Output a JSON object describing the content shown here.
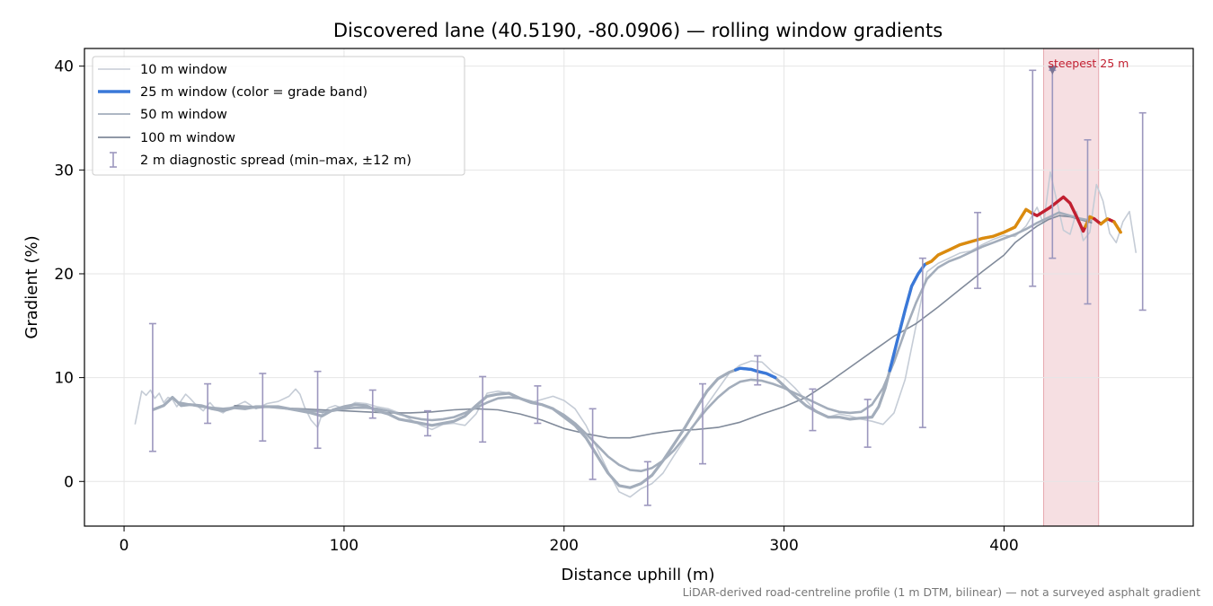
{
  "chart_data": {
    "type": "line",
    "title": "Discovered lane (40.5190, -80.0906) — rolling window gradients",
    "xlabel": "Distance uphill (m)",
    "ylabel": "Gradient (%)",
    "xlim": [
      -18,
      486
    ],
    "ylim": [
      -4.3,
      41.7
    ],
    "x_ticks": [
      0,
      100,
      200,
      300,
      400
    ],
    "y_ticks": [
      0,
      10,
      20,
      30,
      40
    ],
    "grid": true,
    "legend_position": "upper-left",
    "footnote": "LiDAR-derived road-centreline profile (1 m DTM, bilinear) — not a surveyed asphalt gradient",
    "colors": {
      "w10": "#c5ccd6",
      "w50": "#a3adbb",
      "w100": "#808a9a",
      "errorbar": "#9c97be",
      "band_blue": "#3a78d8",
      "band_orange": "#db8b0e",
      "band_red": "#c21f30",
      "highlight_fill": "#f3d4d8",
      "highlight_edge": "#e7a9b0",
      "annotation": "#c21f30",
      "marker": "#7a7595"
    },
    "series": [
      {
        "name": "10 m window",
        "x": [
          5,
          8,
          10,
          12,
          14,
          16,
          18,
          20,
          22,
          24,
          26,
          28,
          30,
          33,
          36,
          39,
          42,
          45,
          48,
          51,
          55,
          60,
          65,
          70,
          75,
          78,
          80,
          82,
          85,
          88,
          90,
          93,
          96,
          100,
          105,
          110,
          115,
          120,
          125,
          130,
          135,
          140,
          145,
          150,
          155,
          160,
          165,
          170,
          175,
          180,
          185,
          190,
          195,
          200,
          205,
          210,
          215,
          220,
          225,
          230,
          235,
          240,
          245,
          250,
          255,
          260,
          265,
          270,
          275,
          280,
          285,
          290,
          295,
          300,
          305,
          310,
          315,
          320,
          325,
          330,
          335,
          340,
          345,
          350,
          355,
          360,
          365,
          370,
          375,
          380,
          385,
          390,
          395,
          400,
          405,
          410,
          415,
          418,
          421,
          424,
          427,
          430,
          433,
          436,
          439,
          442,
          445,
          448,
          451,
          454,
          457,
          460
        ],
        "y": [
          5.5,
          8.7,
          8.3,
          8.8,
          8.0,
          8.5,
          7.6,
          8.1,
          7.9,
          7.2,
          7.8,
          8.4,
          8.0,
          7.3,
          6.8,
          7.6,
          6.9,
          6.6,
          7.1,
          7.3,
          7.7,
          7.0,
          7.5,
          7.7,
          8.2,
          8.9,
          8.4,
          7.2,
          5.9,
          5.2,
          6.5,
          7.1,
          7.3,
          7.0,
          7.6,
          7.5,
          7.2,
          7.0,
          6.6,
          6.0,
          5.4,
          5.0,
          5.5,
          5.6,
          5.4,
          6.5,
          8.5,
          8.7,
          8.5,
          8.0,
          7.6,
          7.9,
          8.2,
          7.8,
          7.0,
          5.4,
          3.2,
          1.0,
          -1.0,
          -1.5,
          -0.7,
          -0.2,
          0.8,
          2.5,
          4.1,
          5.8,
          7.4,
          8.9,
          10.4,
          11.2,
          11.6,
          11.5,
          10.5,
          10.0,
          9.0,
          7.8,
          6.7,
          6.2,
          6.5,
          6.3,
          6.0,
          5.8,
          5.5,
          6.6,
          9.8,
          15.0,
          20.2,
          21.0,
          21.5,
          22.0,
          22.2,
          22.8,
          23.3,
          23.7,
          23.6,
          24.6,
          26.4,
          24.8,
          29.8,
          27.0,
          24.2,
          23.8,
          26.0,
          23.2,
          24.0,
          28.6,
          27.0,
          23.9,
          23.0,
          25.0,
          26.0,
          22.0
        ]
      },
      {
        "name": "25 m window (color = grade band)",
        "x": [
          13,
          18,
          22,
          26,
          30,
          35,
          40,
          45,
          50,
          55,
          60,
          65,
          70,
          75,
          80,
          85,
          90,
          95,
          100,
          105,
          110,
          115,
          120,
          125,
          130,
          135,
          140,
          145,
          150,
          155,
          160,
          165,
          170,
          175,
          180,
          185,
          190,
          195,
          200,
          205,
          210,
          215,
          220,
          225,
          230,
          235,
          240,
          245,
          250,
          255,
          260,
          265,
          270,
          275,
          280,
          285,
          288,
          292,
          296,
          300,
          305,
          310,
          315,
          320,
          325,
          330,
          335,
          340,
          343,
          346,
          349,
          352,
          355,
          358,
          361,
          364,
          367,
          370,
          375,
          380,
          385,
          390,
          395,
          400,
          405,
          410,
          413,
          415,
          418,
          421,
          424,
          427,
          430,
          433,
          436,
          439,
          441,
          444,
          447,
          450,
          453
        ],
        "y": [
          6.9,
          7.3,
          8.1,
          7.3,
          7.4,
          7.3,
          7.0,
          6.8,
          7.1,
          7.0,
          7.2,
          7.2,
          7.2,
          7.0,
          6.8,
          6.6,
          6.3,
          6.9,
          7.2,
          7.4,
          7.3,
          6.8,
          6.5,
          6.0,
          5.8,
          5.6,
          5.4,
          5.6,
          5.8,
          6.3,
          7.3,
          8.2,
          8.4,
          8.5,
          8.0,
          7.6,
          7.4,
          7.0,
          6.2,
          5.4,
          4.2,
          2.5,
          0.8,
          -0.4,
          -0.6,
          -0.2,
          0.6,
          2.0,
          3.6,
          5.2,
          7.0,
          8.7,
          9.9,
          10.5,
          10.9,
          10.8,
          10.6,
          10.4,
          10.0,
          9.2,
          8.2,
          7.3,
          6.7,
          6.2,
          6.2,
          6.0,
          6.1,
          6.2,
          7.2,
          9.0,
          11.5,
          14.0,
          16.5,
          18.8,
          20.0,
          20.9,
          21.2,
          21.8,
          22.3,
          22.8,
          23.1,
          23.4,
          23.6,
          24.0,
          24.5,
          26.2,
          25.8,
          25.6,
          26.0,
          26.4,
          26.9,
          27.4,
          26.8,
          25.5,
          24.1,
          25.5,
          25.3,
          24.8,
          25.3,
          25.0,
          24.0
        ],
        "band_segments": [
          {
            "from_x": 13,
            "to_x": 278,
            "band": "blue"
          },
          {
            "from_x": 278,
            "to_x": 296,
            "band": "blue"
          },
          {
            "from_x": 348,
            "to_x": 365,
            "band": "blue"
          },
          {
            "from_x": 365,
            "to_x": 413,
            "band": "orange"
          },
          {
            "from_x": 413,
            "to_x": 437,
            "band": "red"
          },
          {
            "from_x": 437,
            "to_x": 441,
            "band": "orange"
          },
          {
            "from_x": 441,
            "to_x": 444,
            "band": "red"
          },
          {
            "from_x": 444,
            "to_x": 448,
            "band": "orange"
          },
          {
            "from_x": 448,
            "to_x": 450,
            "band": "red"
          },
          {
            "from_x": 450,
            "to_x": 453,
            "band": "orange"
          }
        ]
      },
      {
        "name": "50 m window",
        "x": [
          25,
          30,
          35,
          40,
          45,
          50,
          55,
          60,
          65,
          70,
          75,
          80,
          85,
          90,
          95,
          100,
          105,
          110,
          115,
          120,
          125,
          130,
          135,
          140,
          145,
          150,
          155,
          160,
          165,
          170,
          175,
          180,
          185,
          190,
          195,
          200,
          205,
          210,
          215,
          220,
          225,
          230,
          235,
          240,
          245,
          250,
          255,
          260,
          265,
          270,
          275,
          280,
          285,
          290,
          295,
          300,
          305,
          310,
          315,
          320,
          325,
          330,
          335,
          340,
          345,
          350,
          355,
          360,
          365,
          370,
          375,
          380,
          385,
          390,
          395,
          400,
          405,
          410,
          415,
          420,
          425,
          430,
          435,
          440
        ],
        "y": [
          7.6,
          7.4,
          7.2,
          7.1,
          7.0,
          7.1,
          7.2,
          7.1,
          7.2,
          7.1,
          7.0,
          6.9,
          6.8,
          6.7,
          6.8,
          7.0,
          7.1,
          7.1,
          7.0,
          6.8,
          6.5,
          6.2,
          6.0,
          5.9,
          6.0,
          6.2,
          6.6,
          7.1,
          7.6,
          8.0,
          8.1,
          8.0,
          7.7,
          7.4,
          7.0,
          6.4,
          5.6,
          4.6,
          3.5,
          2.4,
          1.6,
          1.1,
          1.0,
          1.3,
          2.0,
          3.0,
          4.3,
          5.7,
          7.0,
          8.1,
          9.0,
          9.6,
          9.8,
          9.7,
          9.4,
          9.0,
          8.5,
          8.0,
          7.5,
          7.0,
          6.7,
          6.6,
          6.7,
          7.4,
          9.0,
          11.5,
          14.5,
          17.2,
          19.5,
          20.6,
          21.2,
          21.6,
          22.1,
          22.6,
          23.0,
          23.4,
          23.8,
          24.3,
          24.9,
          25.4,
          25.9,
          25.6,
          25.3,
          25.1
        ]
      },
      {
        "name": "100 m window",
        "x": [
          50,
          60,
          70,
          80,
          90,
          100,
          110,
          120,
          130,
          140,
          150,
          160,
          170,
          180,
          190,
          200,
          210,
          220,
          230,
          240,
          250,
          260,
          270,
          280,
          290,
          300,
          310,
          320,
          330,
          340,
          350,
          360,
          370,
          380,
          390,
          400,
          405,
          410,
          415,
          420,
          425,
          430,
          435,
          440
        ],
        "y": [
          7.3,
          7.2,
          7.1,
          7.0,
          6.9,
          6.8,
          6.7,
          6.6,
          6.6,
          6.7,
          6.9,
          7.0,
          6.9,
          6.5,
          5.9,
          5.1,
          4.6,
          4.2,
          4.2,
          4.6,
          4.9,
          5.0,
          5.2,
          5.7,
          6.5,
          7.2,
          8.1,
          9.5,
          11.0,
          12.5,
          14.0,
          15.2,
          16.8,
          18.5,
          20.2,
          21.8,
          23.0,
          23.8,
          24.6,
          25.2,
          25.6,
          25.5,
          25.2,
          24.9
        ]
      }
    ],
    "errorbars": {
      "name": "2 m diagnostic spread (min–max, ±12 m)",
      "points": [
        {
          "x": 13,
          "y": 8.7,
          "low": 2.9,
          "high": 15.2
        },
        {
          "x": 38,
          "y": 7.5,
          "low": 5.6,
          "high": 9.4
        },
        {
          "x": 63,
          "y": 7.1,
          "low": 3.9,
          "high": 10.4
        },
        {
          "x": 88,
          "y": 6.7,
          "low": 3.2,
          "high": 10.6
        },
        {
          "x": 113,
          "y": 7.3,
          "low": 6.1,
          "high": 8.8
        },
        {
          "x": 138,
          "y": 5.4,
          "low": 4.4,
          "high": 6.8
        },
        {
          "x": 163,
          "y": 7.0,
          "low": 3.8,
          "high": 10.1
        },
        {
          "x": 188,
          "y": 7.5,
          "low": 5.6,
          "high": 9.2
        },
        {
          "x": 213,
          "y": 3.0,
          "low": 0.2,
          "high": 7.0
        },
        {
          "x": 238,
          "y": 0.0,
          "low": -2.3,
          "high": 1.9
        },
        {
          "x": 263,
          "y": 5.0,
          "low": 1.7,
          "high": 9.4
        },
        {
          "x": 288,
          "y": 10.5,
          "low": 9.3,
          "high": 12.1
        },
        {
          "x": 313,
          "y": 7.5,
          "low": 4.9,
          "high": 8.9
        },
        {
          "x": 338,
          "y": 6.2,
          "low": 3.3,
          "high": 7.9
        },
        {
          "x": 363,
          "y": 16.5,
          "low": 5.2,
          "high": 21.5
        },
        {
          "x": 388,
          "y": 22.8,
          "low": 18.6,
          "high": 25.9
        },
        {
          "x": 413,
          "y": 25.5,
          "low": 18.8,
          "high": 39.6
        },
        {
          "x": 438,
          "y": 25.8,
          "low": 17.1,
          "high": 32.9
        },
        {
          "x": 463,
          "y": 25.0,
          "low": 16.5,
          "high": 35.5
        },
        {
          "x": 422,
          "y": 30.0,
          "low": 21.5,
          "high": 39.6
        }
      ]
    },
    "highlight": {
      "x_from": 418,
      "x_to": 443,
      "label": "steepest 25 m",
      "marker_x": 422,
      "marker_y": 39.6
    }
  },
  "legend": {
    "items": [
      {
        "label": "10 m window"
      },
      {
        "label": "25 m window (color = grade band)"
      },
      {
        "label": "50 m window"
      },
      {
        "label": "100 m window"
      },
      {
        "label": "2 m diagnostic spread (min–max, ±12 m)"
      }
    ]
  }
}
